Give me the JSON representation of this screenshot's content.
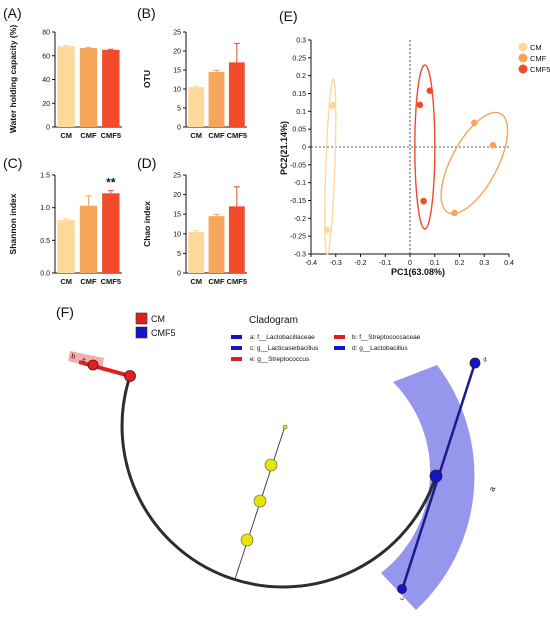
{
  "panels": {
    "A": "(A)",
    "B": "(B)",
    "C": "(C)",
    "D": "(D)",
    "E": "(E)",
    "F": "(F)"
  },
  "colors": {
    "CM": "#fdd99b",
    "CMF": "#f5a65b",
    "CMF5": "#f14b2b",
    "cm_clade": "#dd2020",
    "cmf5_clade": "#1515c8",
    "node": "#e6e600"
  },
  "chart_data": [
    {
      "id": "A",
      "type": "bar",
      "categories": [
        "CM",
        "CMF",
        "CMF5"
      ],
      "values": [
        68,
        66.5,
        65
      ],
      "errors": [
        0.6,
        0.6,
        0.5
      ],
      "ylabel": "Water holding capacity (%)",
      "ylim": [
        0,
        80
      ],
      "yticks": [
        0,
        20,
        40,
        60,
        80
      ]
    },
    {
      "id": "B",
      "type": "bar",
      "categories": [
        "CM",
        "CMF",
        "CMF5"
      ],
      "values": [
        10.5,
        14.5,
        17
      ],
      "errors": [
        0.3,
        0.4,
        5
      ],
      "ylabel": "OTU",
      "ylim": [
        0,
        25
      ],
      "yticks": [
        0,
        5,
        10,
        15,
        20,
        25
      ]
    },
    {
      "id": "C",
      "type": "bar",
      "categories": [
        "CM",
        "CMF",
        "CMF5"
      ],
      "values": [
        0.81,
        1.03,
        1.22
      ],
      "errors": [
        0.02,
        0.15,
        0.04
      ],
      "annotation": "**",
      "ylabel": "Shannon index",
      "ylim": [
        0,
        1.5
      ],
      "yticks": [
        "0.0",
        "0.5",
        "1.0",
        "1.5"
      ]
    },
    {
      "id": "D",
      "type": "bar",
      "categories": [
        "CM",
        "CMF",
        "CMF5"
      ],
      "values": [
        10.5,
        14.5,
        17
      ],
      "errors": [
        0.3,
        0.4,
        5
      ],
      "ylabel": "Chao index",
      "ylim": [
        0,
        25
      ],
      "yticks": [
        0,
        5,
        10,
        15,
        20,
        25
      ]
    },
    {
      "id": "E",
      "type": "scatter",
      "xlabel": "PC1(63.08%)",
      "ylabel": "PC2(21.14%)",
      "xlim": [
        -0.4,
        0.4
      ],
      "ylim": [
        -0.3,
        0.3
      ],
      "xticks": [
        "-0.4",
        "-0.3",
        "-0.2",
        "-0.1",
        "0",
        "0.1",
        "0.2",
        "0.3",
        "0.4"
      ],
      "yticks": [
        "-0.3",
        "-0.25",
        "-0.2",
        "-0.15",
        "-0.1",
        "-0.05",
        "0",
        "0.05",
        "0.1",
        "0.15",
        "0.2",
        "0.25",
        "0.3"
      ],
      "legend": [
        "CM",
        "CMF",
        "CMF5"
      ],
      "series": [
        {
          "name": "CM",
          "points": [
            [
              -0.315,
              0.115
            ],
            [
              -0.31,
              0.118
            ],
            [
              -0.335,
              -0.232
            ]
          ]
        },
        {
          "name": "CMF",
          "points": [
            [
              0.26,
              0.068
            ],
            [
              0.335,
              0.005
            ],
            [
              0.18,
              -0.185
            ]
          ]
        },
        {
          "name": "CMF5",
          "points": [
            [
              0.04,
              0.118
            ],
            [
              0.08,
              0.158
            ],
            [
              0.055,
              -0.152
            ]
          ]
        }
      ]
    }
  ],
  "cladogram": {
    "title": "Cladogram",
    "groups": [
      "CM",
      "CMF5"
    ],
    "legend": [
      "a: f__Lactobacillaceae",
      "b: f__Streptococcaceae",
      "c: g__Lacticaseibacillus",
      "d: g__Lactobacillus",
      "e: g__Streptococcus"
    ],
    "sector_letters": {
      "a": "a",
      "b": "b",
      "c": "c",
      "d": "d",
      "e": "e"
    }
  }
}
